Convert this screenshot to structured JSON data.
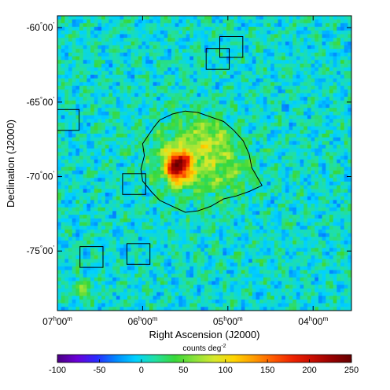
{
  "chart_data": {
    "type": "heatmap",
    "title": "",
    "xlabel": "Right Ascension (J2000)",
    "ylabel": "Declination (J2000)",
    "x_ticks": [
      {
        "value": 7.0,
        "label_main": "07",
        "label_unit": "h",
        "label_main2": "00",
        "label_unit2": "m"
      },
      {
        "value": 6.0,
        "label_main": "06",
        "label_unit": "h",
        "label_main2": "00",
        "label_unit2": "m"
      },
      {
        "value": 5.0,
        "label_main": "05",
        "label_unit": "h",
        "label_main2": "00",
        "label_unit2": "m"
      },
      {
        "value": 4.0,
        "label_main": "04",
        "label_unit": "h",
        "label_main2": "00",
        "label_unit2": "m"
      }
    ],
    "y_ticks": [
      {
        "value": -60,
        "label_main": "-60",
        "label_unit": "°",
        "label_main2": "00",
        "label_unit2": "'"
      },
      {
        "value": -65,
        "label_main": "-65",
        "label_unit": "°",
        "label_main2": "00",
        "label_unit2": "'"
      },
      {
        "value": -70,
        "label_main": "-70",
        "label_unit": "°",
        "label_main2": "00",
        "label_unit2": "'"
      },
      {
        "value": -75,
        "label_main": "-75",
        "label_unit": "°",
        "label_main2": "00",
        "label_unit2": "'"
      }
    ],
    "xlim": [
      7.0,
      3.55
    ],
    "ylim": [
      -79.0,
      -59.2
    ],
    "colorbar": {
      "title_main": "counts deg",
      "title_sup": "-2",
      "range": [
        -100,
        250
      ],
      "ticks": [
        -100,
        -50,
        0,
        50,
        100,
        150,
        200,
        250
      ],
      "colors": [
        "#4b0082",
        "#6a00d8",
        "#2a2aff",
        "#008bff",
        "#00d2ff",
        "#22e0a0",
        "#38d838",
        "#8ae23a",
        "#d6e82c",
        "#ffd400",
        "#ff9c00",
        "#ff5a00",
        "#ee2200",
        "#c80c00",
        "#960000",
        "#640000"
      ]
    },
    "background_level": 5,
    "blobs": [
      {
        "ra": 5.58,
        "dec": -69.3,
        "sigma_ra": 0.1,
        "sigma_dec": 0.7,
        "amp": 210
      },
      {
        "ra": 5.4,
        "dec": -68.6,
        "sigma_ra": 0.35,
        "sigma_dec": 1.8,
        "amp": 55
      },
      {
        "ra": 5.2,
        "dec": -67.4,
        "sigma_ra": 0.15,
        "sigma_dec": 0.8,
        "amp": 35
      },
      {
        "ra": 5.0,
        "dec": -69.7,
        "sigma_ra": 0.2,
        "sigma_dec": 1.1,
        "amp": 25
      },
      {
        "ra": 6.7,
        "dec": -77.6,
        "sigma_ra": 0.08,
        "sigma_dec": 0.5,
        "amp": 45
      }
    ],
    "contour": [
      [
        5.87,
        -66.7
      ],
      [
        5.8,
        -66.2
      ],
      [
        5.65,
        -65.8
      ],
      [
        5.5,
        -65.6
      ],
      [
        5.35,
        -65.7
      ],
      [
        5.2,
        -66.0
      ],
      [
        5.05,
        -66.3
      ],
      [
        4.93,
        -66.9
      ],
      [
        4.82,
        -67.6
      ],
      [
        4.75,
        -68.5
      ],
      [
        4.72,
        -69.4
      ],
      [
        4.6,
        -70.6
      ],
      [
        4.75,
        -71.0
      ],
      [
        4.9,
        -71.3
      ],
      [
        5.05,
        -71.5
      ],
      [
        5.2,
        -72.0
      ],
      [
        5.35,
        -72.3
      ],
      [
        5.5,
        -72.4
      ],
      [
        5.65,
        -72.0
      ],
      [
        5.8,
        -71.6
      ],
      [
        5.9,
        -71.0
      ],
      [
        6.0,
        -70.3
      ],
      [
        6.02,
        -69.5
      ],
      [
        5.98,
        -68.6
      ],
      [
        6.0,
        -67.8
      ],
      [
        5.93,
        -67.2
      ],
      [
        5.87,
        -66.7
      ]
    ],
    "boxes": [
      {
        "ra": 4.96,
        "dec": -61.3,
        "size_ra": 0.27,
        "size_dec": 1.4
      },
      {
        "ra": 5.12,
        "dec": -62.1,
        "size_ra": 0.27,
        "size_dec": 1.4
      },
      {
        "ra": 6.88,
        "dec": -66.2,
        "size_ra": 0.27,
        "size_dec": 1.4
      },
      {
        "ra": 6.1,
        "dec": -70.5,
        "size_ra": 0.27,
        "size_dec": 1.4
      },
      {
        "ra": 6.6,
        "dec": -75.4,
        "size_ra": 0.27,
        "size_dec": 1.4
      },
      {
        "ra": 6.05,
        "dec": -75.2,
        "size_ra": 0.27,
        "size_dec": 1.4
      }
    ]
  }
}
